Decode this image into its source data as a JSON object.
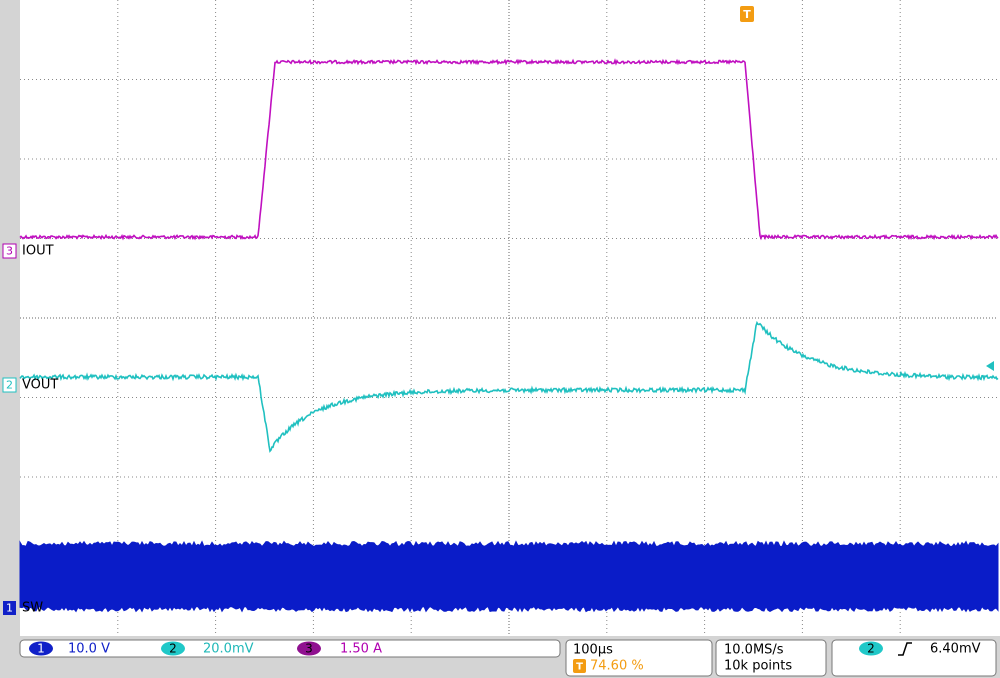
{
  "trigger_marker": "T",
  "channels": [
    {
      "number": "3",
      "label": "IOUT"
    },
    {
      "number": "2",
      "label": "VOUT"
    },
    {
      "number": "1",
      "label": "SW"
    }
  ],
  "status_bar": {
    "ch1": {
      "number": "1",
      "scale": "10.0 V"
    },
    "ch2": {
      "number": "2",
      "scale": "20.0mV"
    },
    "ch3": {
      "number": "3",
      "scale": "1.50 A"
    },
    "timebase": "100µs",
    "trigger_position": "74.60 %",
    "sample_rate": "10.0MS/s",
    "record_length": "10k points",
    "trigger": {
      "source": "2",
      "level": "6.40mV"
    }
  }
}
